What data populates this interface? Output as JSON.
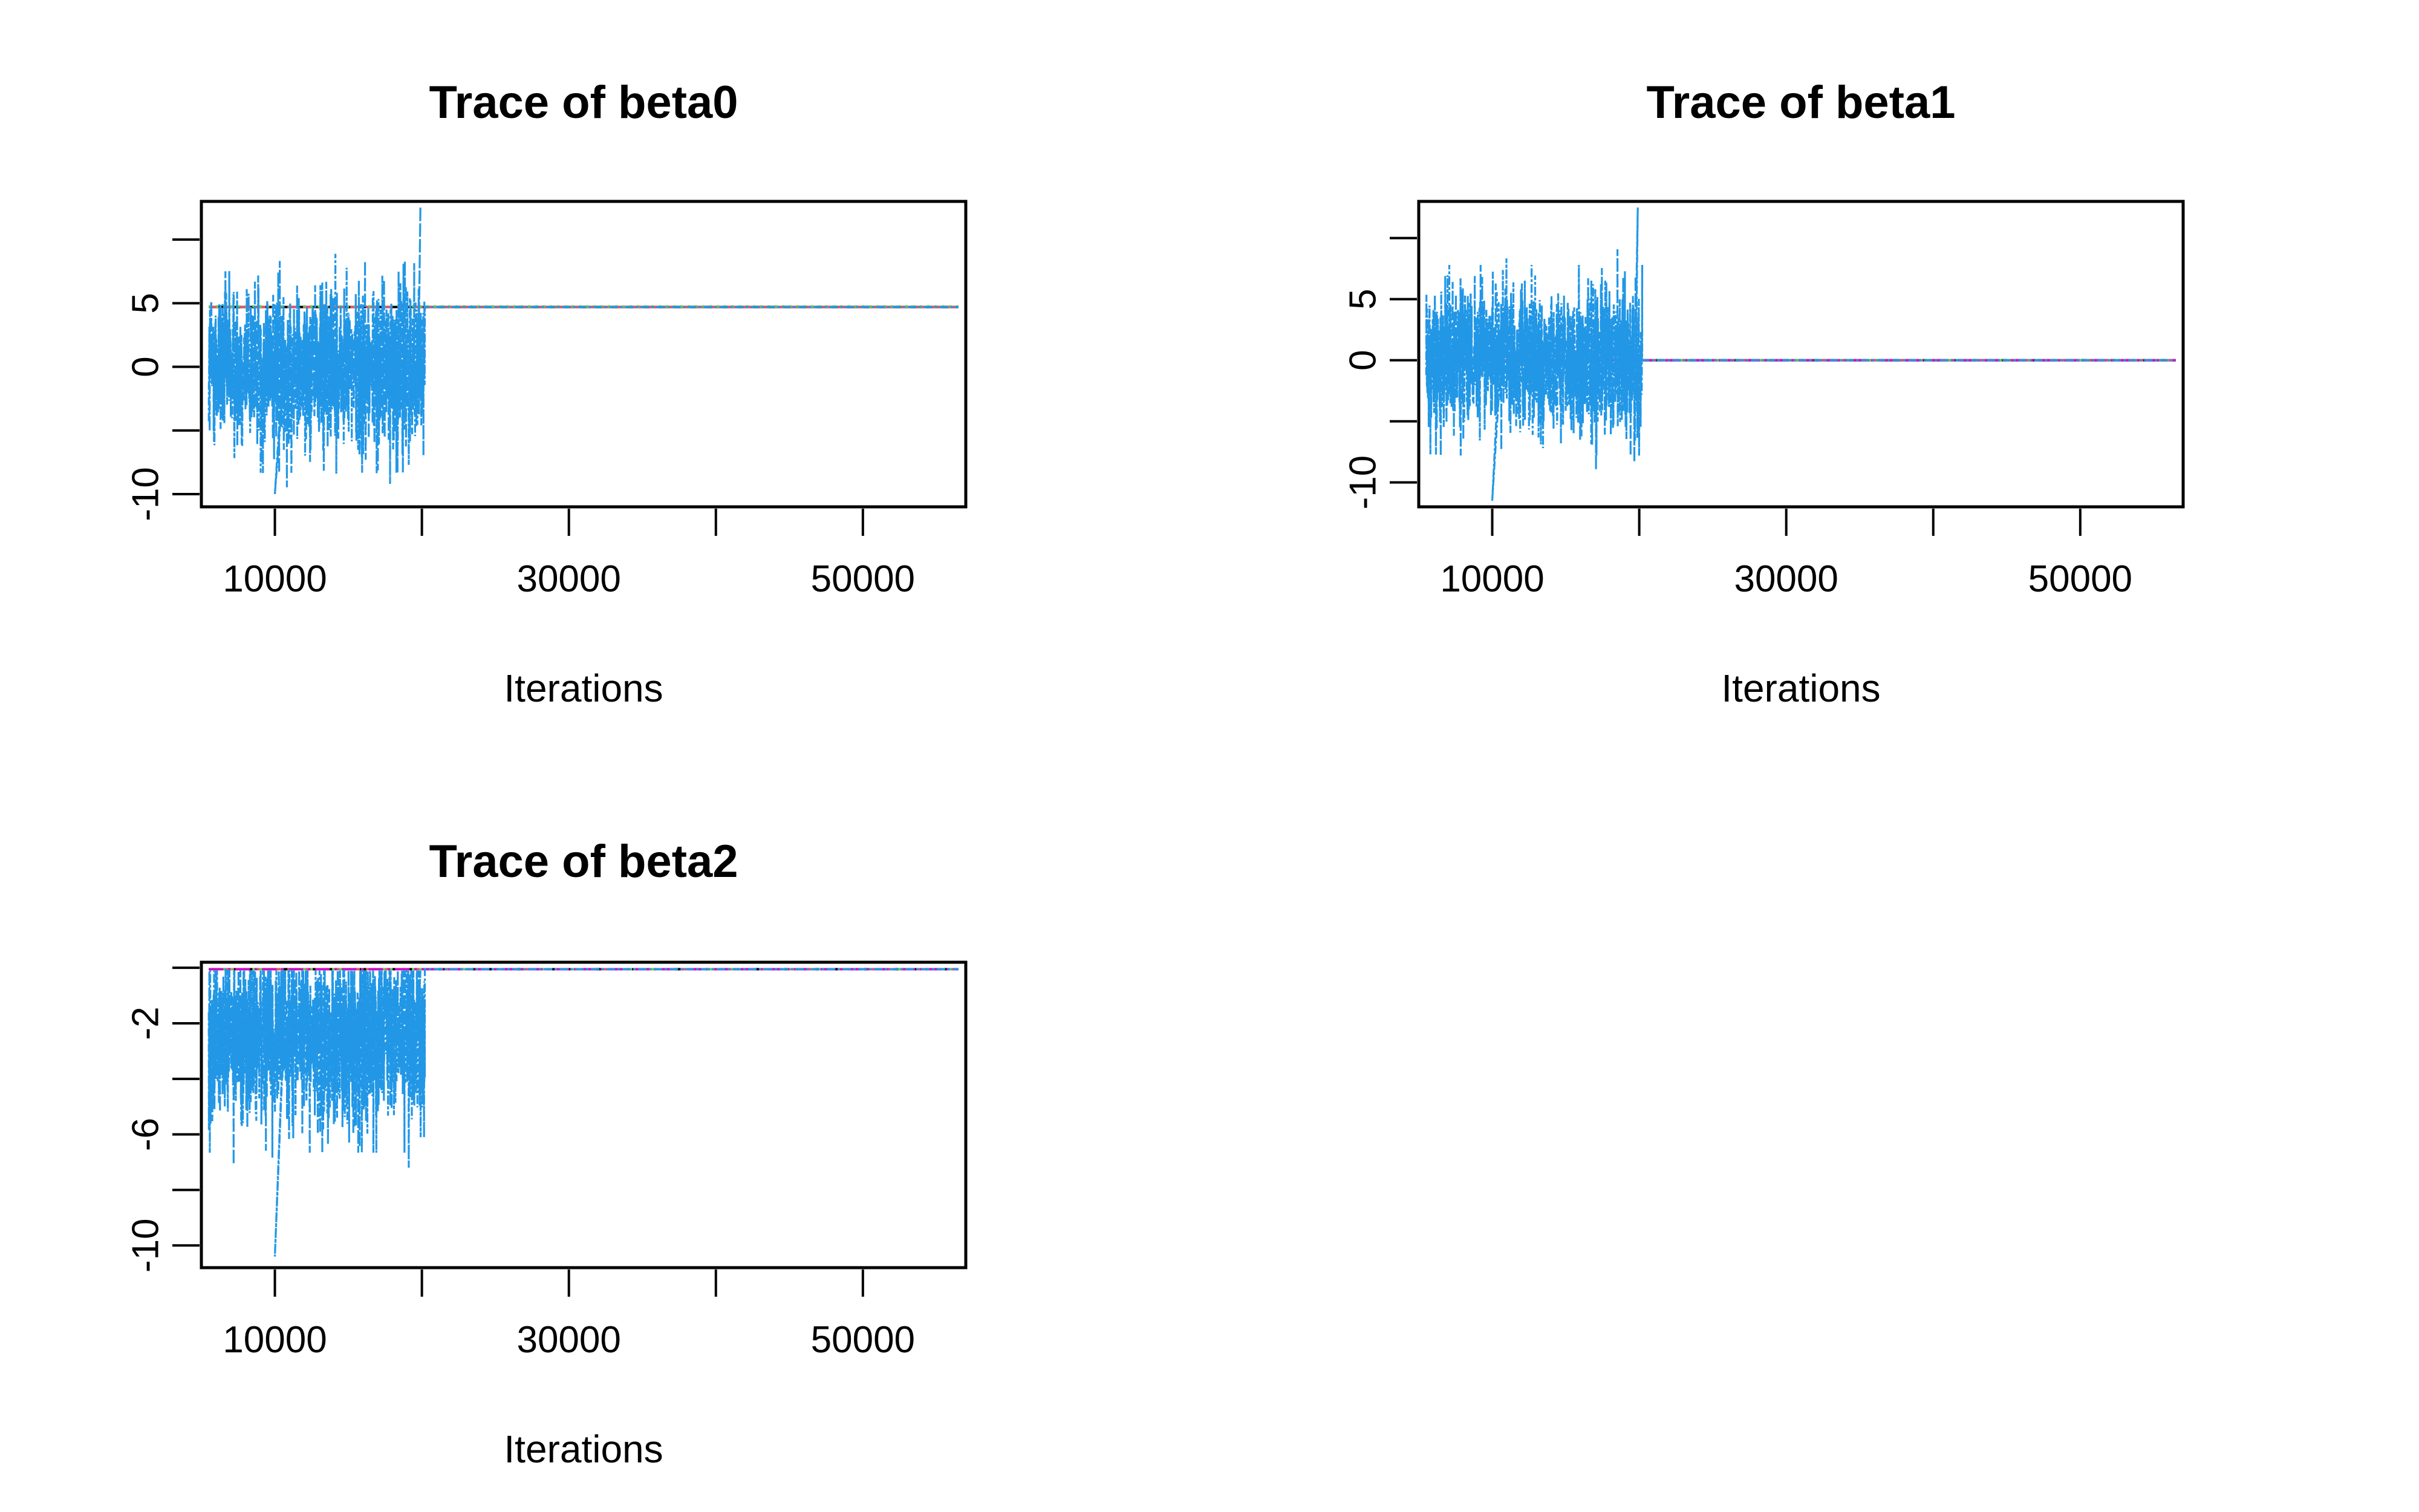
{
  "chart_data": [
    {
      "type": "line",
      "title": "Trace of beta0",
      "xlabel": "Iterations",
      "ylabel": "",
      "xlim": [
        5000,
        57000
      ],
      "ylim": [
        -11,
        13
      ],
      "xticks": [
        10000,
        20000,
        30000,
        40000,
        50000
      ],
      "xtick_labels": [
        "10000",
        "",
        "30000",
        "",
        "50000"
      ],
      "yticks": [
        -10,
        -5,
        0,
        5,
        10
      ],
      "ytick_labels": [
        "-10",
        "",
        "0",
        "5",
        ""
      ],
      "grid": false,
      "legend": "none",
      "noisy_segment": {
        "x_start": 5500,
        "x_end": 20200,
        "center": 0.0,
        "spread": 3.2,
        "min": -10.0,
        "max": 12.6
      },
      "converged_segment": {
        "x_start": 20200,
        "x_end": 56500,
        "value": 4.7
      },
      "series": [
        {
          "color": "#000000",
          "x": [
            5500,
            56500
          ],
          "values": [
            4.7,
            4.7
          ]
        },
        {
          "color": "#DF536B",
          "x": [
            5500,
            56500
          ],
          "values": [
            4.7,
            4.7
          ]
        },
        {
          "color": "#61D04F",
          "x": [
            5500,
            56500
          ],
          "values": [
            4.75,
            4.75
          ]
        },
        {
          "color": "#2297E6",
          "x": [
            5500,
            20200,
            56500
          ],
          "values": [
            0.0,
            4.7,
            4.7
          ]
        }
      ]
    },
    {
      "type": "line",
      "title": "Trace of beta1",
      "xlabel": "Iterations",
      "ylabel": "",
      "xlim": [
        5000,
        57000
      ],
      "ylim": [
        -12,
        13
      ],
      "xticks": [
        10000,
        20000,
        30000,
        40000,
        50000
      ],
      "xtick_labels": [
        "10000",
        "",
        "30000",
        "",
        "50000"
      ],
      "yticks": [
        -10,
        -5,
        0,
        5,
        10
      ],
      "ytick_labels": [
        "-10",
        "",
        "0",
        "5",
        ""
      ],
      "grid": false,
      "legend": "none",
      "noisy_segment": {
        "x_start": 5500,
        "x_end": 20200,
        "center": 0.0,
        "spread": 3.0,
        "min": -11.5,
        "max": 12.5
      },
      "converged_segment": {
        "x_start": 20200,
        "x_end": 56500,
        "value": 0.0
      },
      "series": [
        {
          "color": "#000000",
          "x": [
            5500,
            56500
          ],
          "values": [
            0.0,
            0.0
          ]
        },
        {
          "color": "#DF536B",
          "x": [
            5500,
            56500
          ],
          "values": [
            0.0,
            0.0
          ]
        },
        {
          "color": "#61D04F",
          "x": [
            5500,
            56500
          ],
          "values": [
            0.0,
            0.0
          ]
        },
        {
          "color": "#CD0BBC",
          "x": [
            5500,
            56500
          ],
          "values": [
            0.0,
            0.0
          ]
        },
        {
          "color": "#2297E6",
          "x": [
            5500,
            20200,
            56500
          ],
          "values": [
            0.0,
            0.0,
            0.0
          ]
        }
      ]
    },
    {
      "type": "line",
      "title": "Trace of beta2",
      "xlabel": "Iterations",
      "ylabel": "",
      "xlim": [
        5000,
        57000
      ],
      "ylim": [
        -10.8,
        0.2
      ],
      "xticks": [
        10000,
        20000,
        30000,
        40000,
        50000
      ],
      "xtick_labels": [
        "10000",
        "",
        "30000",
        "",
        "50000"
      ],
      "yticks": [
        -10,
        -8,
        -6,
        -4,
        -2,
        0
      ],
      "ytick_labels": [
        "-10",
        "",
        "-6",
        "",
        "-2",
        ""
      ],
      "grid": false,
      "legend": "none",
      "noisy_segment": {
        "x_start": 5500,
        "x_end": 20200,
        "center": -2.5,
        "spread": 1.6,
        "min": -10.4,
        "max": -0.1
      },
      "converged_segment": {
        "x_start": 20200,
        "x_end": 56500,
        "value": -0.05
      },
      "series": [
        {
          "color": "#000000",
          "x": [
            5500,
            56500
          ],
          "values": [
            -0.05,
            -0.05
          ]
        },
        {
          "color": "#DF536B",
          "x": [
            5500,
            56500
          ],
          "values": [
            -0.05,
            -0.05
          ]
        },
        {
          "color": "#61D04F",
          "x": [
            5500,
            56500
          ],
          "values": [
            -0.05,
            -0.05
          ]
        },
        {
          "color": "#CD0BBC",
          "x": [
            5500,
            56500
          ],
          "values": [
            -0.05,
            -0.05
          ]
        },
        {
          "color": "#2297E6",
          "x": [
            5500,
            20200,
            56500
          ],
          "values": [
            -2.5,
            -0.05,
            -0.05
          ]
        }
      ]
    }
  ]
}
